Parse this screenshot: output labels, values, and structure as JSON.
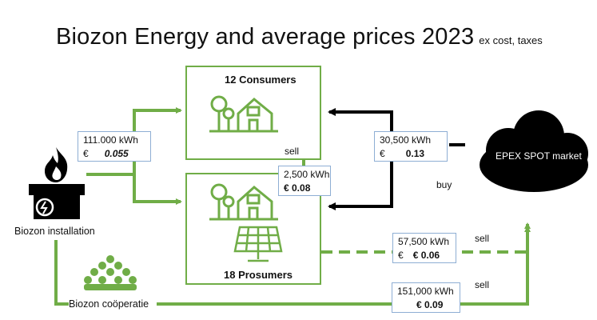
{
  "title": {
    "main": "Biozon Energy and average prices 2023",
    "sub": "ex cost, taxes"
  },
  "consumers": {
    "label": "12 Consumers",
    "sell": "sell"
  },
  "prosumers": {
    "label": "18 Prosumers"
  },
  "installation": {
    "label": "Biozon installation"
  },
  "cooperatie": {
    "label": "Biozon coöperatie"
  },
  "market": {
    "label": "EPEX SPOT market",
    "buy": "buy"
  },
  "flows": {
    "installation_to_consumers": {
      "kwh": "111.000  kWh",
      "currency": "€",
      "price": "0.055"
    },
    "market_buy": {
      "kwh": "30,500 kWh",
      "currency": "€",
      "price": "0.13"
    },
    "prosumer_to_consumer": {
      "kwh": "2,500 kWh",
      "price_line": "€  0.08"
    },
    "prosumer_sell": {
      "kwh": "57,500  kWh",
      "currency": "€",
      "price": "€ 0.06",
      "label": "sell"
    },
    "cooperatie_sell": {
      "kwh": "151,000 kWh",
      "price_line": "€ 0.09",
      "label": "sell"
    }
  },
  "colors": {
    "green": "#70ad47",
    "black": "#000000",
    "box_border": "#8eaed4"
  },
  "icons": [
    "tree-icon",
    "house-icon",
    "solar-panel-icon",
    "flame-icon",
    "battery-icon",
    "people-group-icon",
    "cloud-icon"
  ]
}
